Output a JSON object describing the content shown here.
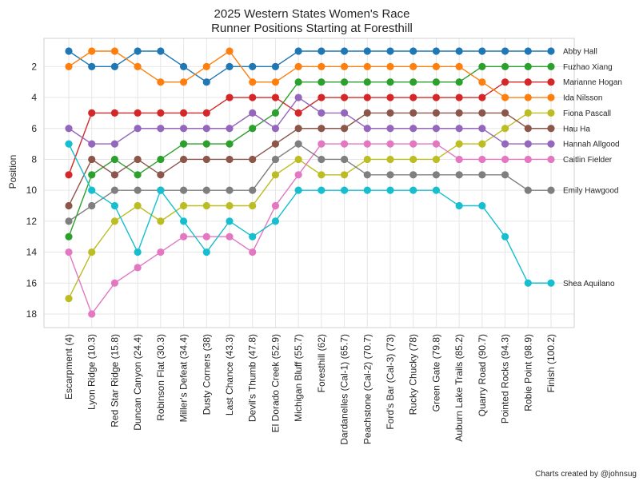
{
  "chart_data": {
    "type": "line",
    "title": "2025 Western States Women's Race",
    "subtitle": "Runner Positions Starting at Foresthill",
    "xlabel": "",
    "ylabel": "Position",
    "ylim": [
      18.8,
      0.2
    ],
    "yticks": [
      2,
      4,
      6,
      8,
      10,
      12,
      14,
      16,
      18
    ],
    "grid": true,
    "categories": [
      "Escarpment (4)",
      "Lyon Ridge (10.3)",
      "Red Star Ridge (15.8)",
      "Duncan Canyon (24.4)",
      "Robinson Flat (30.3)",
      "Miller's Defeat (34.4)",
      "Dusty Corners (38)",
      "Last Chance (43.3)",
      "Devil's Thumb (47.8)",
      "El Dorado Creek (52.9)",
      "Michigan Bluff (55.7)",
      "Foresthill (62)",
      "Dardanelles (Cal-1) (65.7)",
      "Peachstone (Cal-2) (70.7)",
      "Ford's Bar (Cal-3) (73)",
      "Rucky Chucky (78)",
      "Green Gate (79.8)",
      "Auburn Lake Trails (85.2)",
      "Quarry Road (90.7)",
      "Pointed Rocks (94.3)",
      "Robie Point (98.9)",
      "Finish (100.2)"
    ],
    "series": [
      {
        "name": "Abby Hall",
        "color": "#1f77b4",
        "values": [
          1,
          2,
          2,
          1,
          1,
          2,
          3,
          2,
          2,
          2,
          1,
          1,
          1,
          1,
          1,
          1,
          1,
          1,
          1,
          1,
          1,
          1
        ]
      },
      {
        "name": "Fuzhao Xiang",
        "color": "#2ca02c",
        "values": [
          13,
          9,
          8,
          9,
          8,
          7,
          7,
          7,
          6,
          5,
          3,
          3,
          3,
          3,
          3,
          3,
          3,
          3,
          2,
          2,
          2,
          2
        ]
      },
      {
        "name": "Marianne Hogan",
        "color": "#d62728",
        "values": [
          9,
          5,
          5,
          5,
          5,
          5,
          5,
          4,
          4,
          4,
          5,
          4,
          4,
          4,
          4,
          4,
          4,
          4,
          4,
          3,
          3,
          3
        ]
      },
      {
        "name": "Ida Nilsson",
        "color": "#ff7f0e",
        "values": [
          2,
          1,
          1,
          2,
          3,
          3,
          2,
          1,
          3,
          3,
          2,
          2,
          2,
          2,
          2,
          2,
          2,
          2,
          3,
          4,
          4,
          4
        ]
      },
      {
        "name": "Fiona Pascall",
        "color": "#bcbd22",
        "values": [
          17,
          14,
          12,
          11,
          12,
          11,
          11,
          11,
          11,
          9,
          8,
          9,
          9,
          8,
          8,
          8,
          8,
          7,
          7,
          6,
          5,
          5
        ]
      },
      {
        "name": "Hau Ha",
        "color": "#8c564b",
        "values": [
          11,
          8,
          9,
          8,
          9,
          8,
          8,
          8,
          8,
          7,
          6,
          6,
          6,
          5,
          5,
          5,
          5,
          5,
          5,
          5,
          6,
          6
        ]
      },
      {
        "name": "Hannah Allgood",
        "color": "#9467bd",
        "values": [
          6,
          7,
          7,
          6,
          6,
          6,
          6,
          6,
          5,
          6,
          4,
          5,
          5,
          6,
          6,
          6,
          6,
          6,
          6,
          7,
          7,
          7
        ]
      },
      {
        "name": "Caitlin Fielder",
        "color": "#e377c2",
        "values": [
          14,
          18,
          16,
          15,
          14,
          13,
          13,
          13,
          14,
          11,
          9,
          7,
          7,
          7,
          7,
          7,
          7,
          8,
          8,
          8,
          8,
          8
        ]
      },
      {
        "name": "Emily Hawgood",
        "color": "#7f7f7f",
        "values": [
          12,
          11,
          10,
          10,
          10,
          10,
          10,
          10,
          10,
          8,
          7,
          8,
          8,
          9,
          9,
          9,
          9,
          9,
          9,
          9,
          10,
          10
        ]
      },
      {
        "name": "Shea Aquilano",
        "color": "#17becf",
        "values": [
          7,
          10,
          11,
          14,
          10,
          12,
          14,
          12,
          13,
          12,
          10,
          10,
          10,
          10,
          10,
          10,
          10,
          11,
          11,
          13,
          16,
          16
        ]
      }
    ],
    "footnote": "Charts created by @johnsug"
  }
}
